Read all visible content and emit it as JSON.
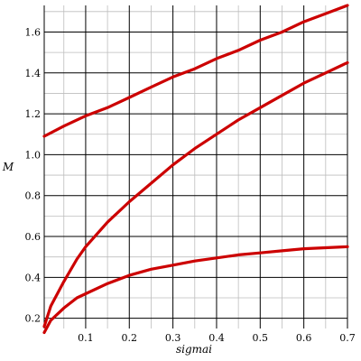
{
  "chart_data": {
    "type": "line",
    "xlabel": "sigmai",
    "ylabel": "M",
    "xlim": [
      0.005,
      0.7
    ],
    "ylim": [
      0.15,
      1.73
    ],
    "x_ticks": [
      0.1,
      0.2,
      0.3,
      0.4,
      0.5,
      0.6,
      0.7
    ],
    "x_tick_labels": [
      "0.1",
      "0.2",
      "0.3",
      "0.4",
      "0.5",
      "0.6",
      "0.7"
    ],
    "y_ticks": [
      0.2,
      0.4,
      0.6,
      0.8,
      1.0,
      1.2,
      1.4,
      1.6
    ],
    "y_tick_labels": [
      "0.2",
      "0.4",
      "0.6",
      "0.8",
      "1.0",
      "1.2",
      "1.4",
      "1.6"
    ],
    "grid": true,
    "line_color": "#cc0000",
    "series": [
      {
        "x": [
          0.005,
          0.05,
          0.1,
          0.15,
          0.2,
          0.25,
          0.3,
          0.35,
          0.4,
          0.45,
          0.5,
          0.55,
          0.6,
          0.65,
          0.7
        ],
        "y": [
          1.09,
          1.14,
          1.19,
          1.23,
          1.28,
          1.33,
          1.38,
          1.42,
          1.47,
          1.51,
          1.56,
          1.6,
          1.65,
          1.69,
          1.73
        ]
      },
      {
        "x": [
          0.005,
          0.02,
          0.05,
          0.08,
          0.1,
          0.15,
          0.2,
          0.25,
          0.3,
          0.35,
          0.4,
          0.45,
          0.5,
          0.55,
          0.6,
          0.65,
          0.7
        ],
        "y": [
          0.16,
          0.26,
          0.38,
          0.49,
          0.55,
          0.67,
          0.77,
          0.86,
          0.95,
          1.03,
          1.1,
          1.17,
          1.23,
          1.29,
          1.35,
          1.4,
          1.45
        ]
      },
      {
        "x": [
          0.005,
          0.02,
          0.05,
          0.08,
          0.1,
          0.15,
          0.2,
          0.25,
          0.3,
          0.35,
          0.4,
          0.45,
          0.5,
          0.55,
          0.6,
          0.65,
          0.7
        ],
        "y": [
          0.13,
          0.19,
          0.25,
          0.3,
          0.32,
          0.37,
          0.41,
          0.44,
          0.46,
          0.48,
          0.495,
          0.51,
          0.52,
          0.53,
          0.54,
          0.545,
          0.55
        ]
      }
    ]
  }
}
